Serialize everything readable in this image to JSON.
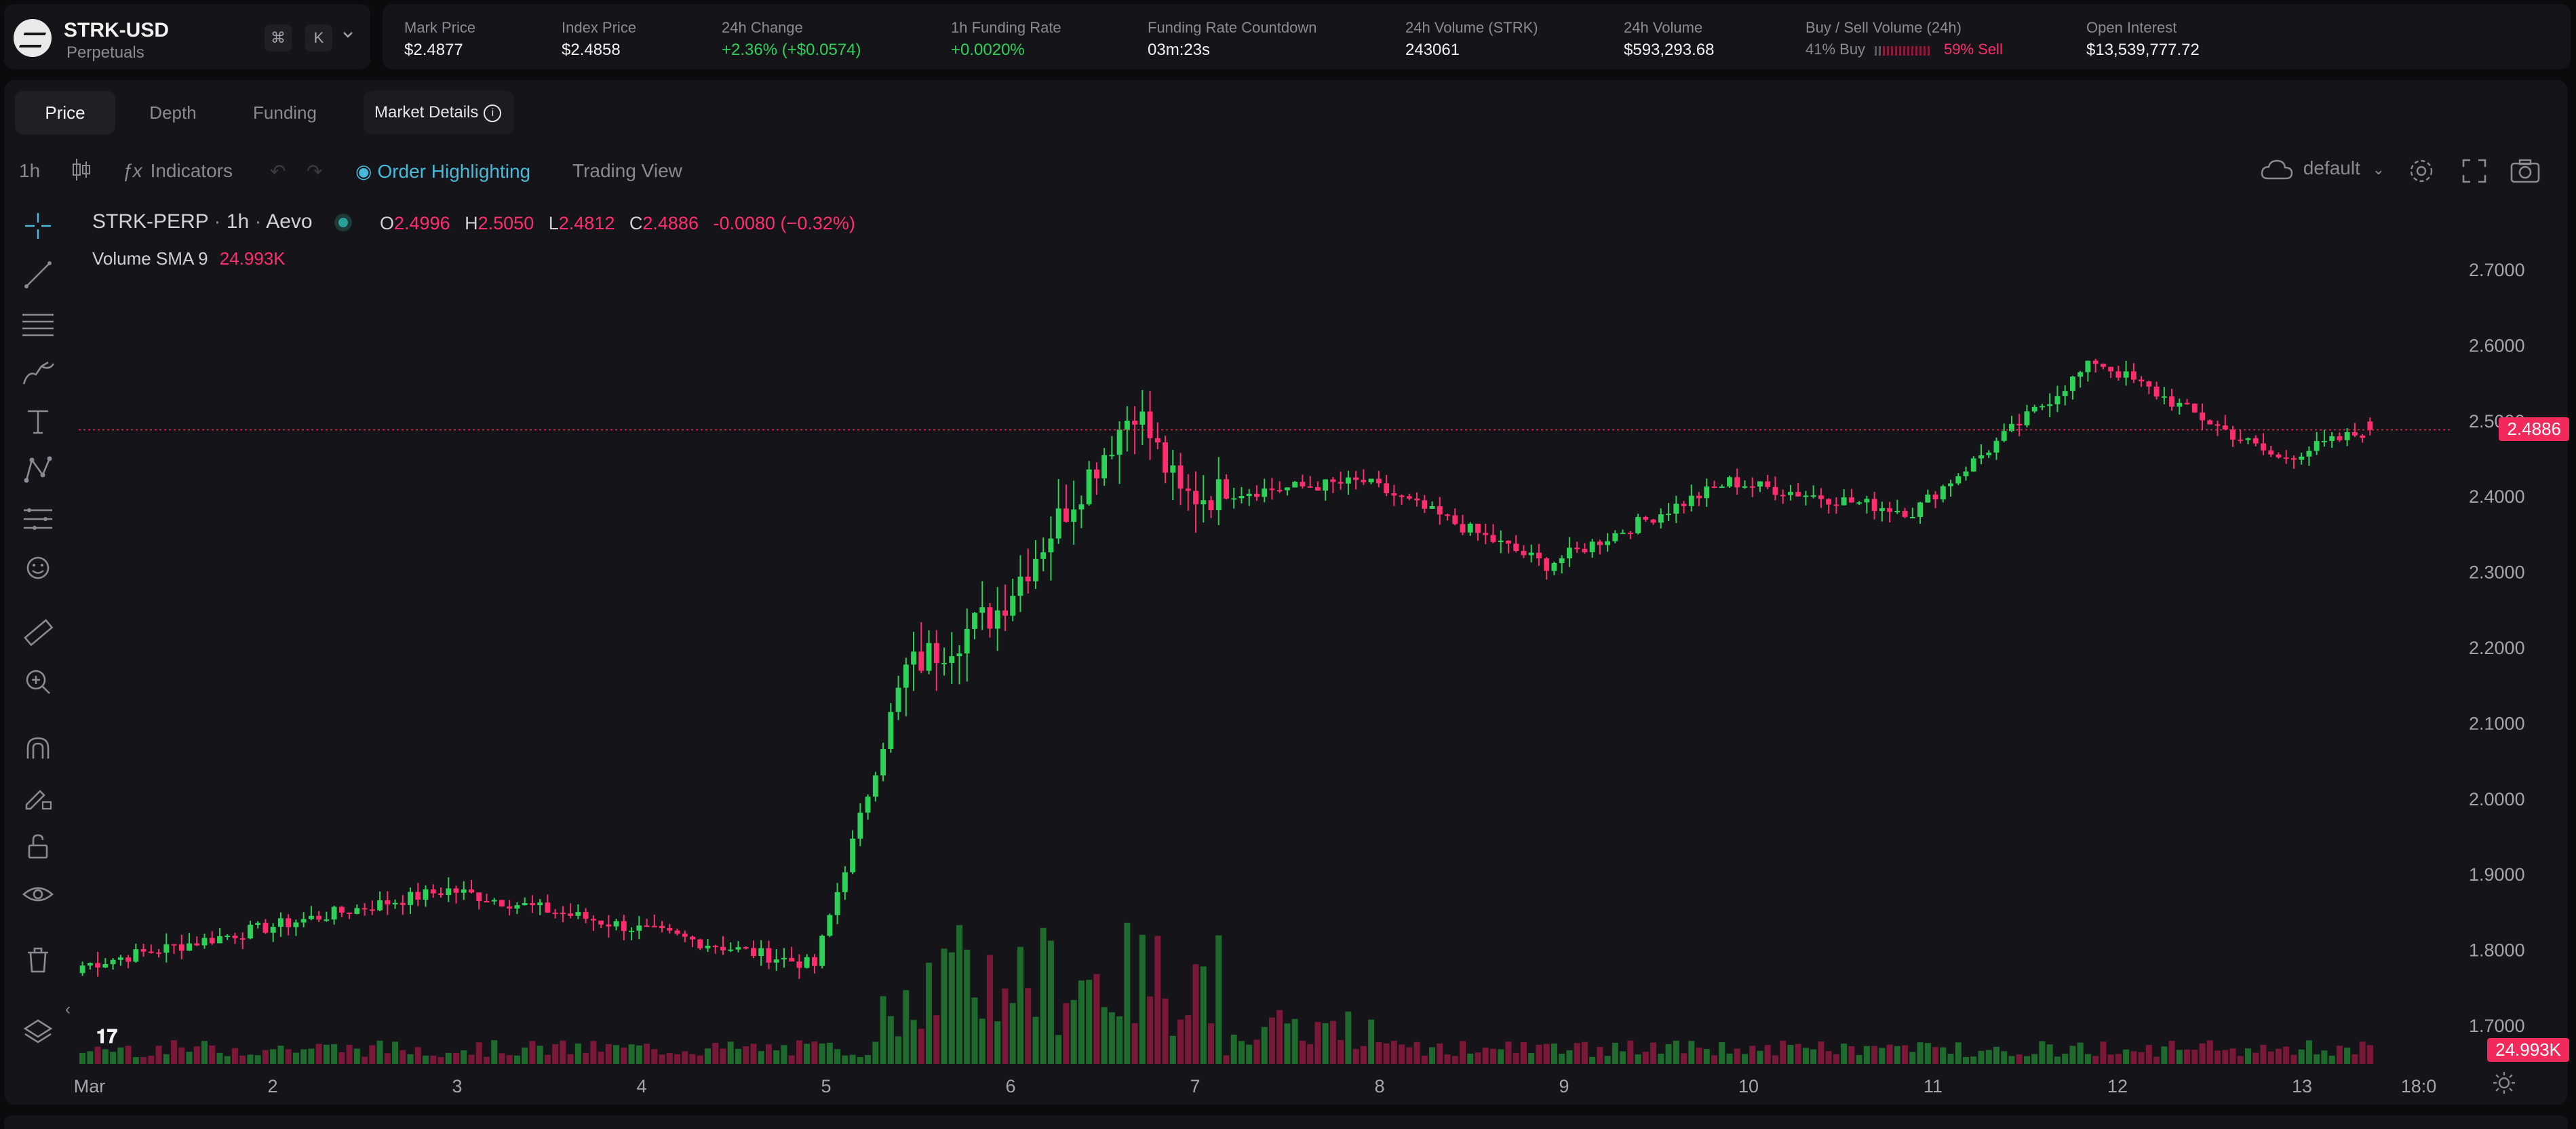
{
  "market": {
    "symbol": "STRK-USD",
    "type": "Perpetuals",
    "shortcut_cmd": "⌘",
    "shortcut_key": "K",
    "chevron": "chevron-down-icon"
  },
  "stats": [
    {
      "label": "Mark Price",
      "value": "$2.4877",
      "color": ""
    },
    {
      "label": "Index Price",
      "value": "$2.4858",
      "color": ""
    },
    {
      "label": "24h Change",
      "value": "+2.36% (+$0.0574)",
      "color": "green"
    },
    {
      "label": "1h Funding Rate",
      "value": "+0.0020%",
      "color": "green"
    },
    {
      "label": "Funding Rate Countdown",
      "value": "03m:23s",
      "color": ""
    },
    {
      "label": "24h Volume (STRK)",
      "value": "243061",
      "color": ""
    },
    {
      "label": "24h Volume",
      "value": "$593,293.68",
      "color": ""
    },
    {
      "label": "Buy / Sell Volume (24h)",
      "buy": "41% Buy",
      "sell": "59% Sell"
    },
    {
      "label": "Open Interest",
      "value": "$13,539,777.72",
      "color": ""
    }
  ],
  "tabs": [
    "Price",
    "Depth",
    "Funding"
  ],
  "active_tab": "Price",
  "market_details": "Market Details",
  "toolbar": {
    "interval": "1h",
    "indicators": "Indicators",
    "order_highlighting": "Order Highlighting",
    "trading_view": "Trading View",
    "layout": "default"
  },
  "legend": {
    "symbol": "STRK-PERP",
    "interval": "1h",
    "exchange": "Aevo",
    "o_label": "O",
    "o": "2.4996",
    "h_label": "H",
    "h": "2.5050",
    "l_label": "L",
    "l": "2.4812",
    "c_label": "C",
    "c": "2.4886",
    "change": "-0.0080 (−0.32%)",
    "volume_label": "Volume SMA 9",
    "volume_value": "24.993K"
  },
  "price_axis": [
    "2.7000",
    "2.6000",
    "2.5000",
    "2.4000",
    "2.3000",
    "2.2000",
    "2.1000",
    "2.0000",
    "1.9000",
    "1.8000",
    "1.7000"
  ],
  "current_price_tag": "2.4886",
  "volume_tag": "24.993K",
  "time_axis": [
    "Mar",
    "2",
    "3",
    "4",
    "5",
    "6",
    "7",
    "8",
    "9",
    "10",
    "11",
    "12",
    "13",
    "18:0"
  ],
  "colors": {
    "up": "#2ed158",
    "down": "#ff2d6e",
    "accent": "#48b9d8",
    "bg": "#141419"
  },
  "chart_data": {
    "type": "candlestick",
    "interval": "1h",
    "ylim": [
      1.7,
      2.7
    ],
    "key_points": [
      {
        "x": "Mar 1",
        "close": 1.78
      },
      {
        "x": "Mar 3",
        "close": 1.88
      },
      {
        "x": "Mar 4",
        "close": 1.83
      },
      {
        "x": "Mar 5",
        "close": 1.78
      },
      {
        "x": "Mar 5 12:00",
        "close": 2.17
      },
      {
        "x": "Mar 6",
        "close": 2.25
      },
      {
        "x": "Mar 6 18:00",
        "close": 2.52
      },
      {
        "x": "Mar 7",
        "close": 2.4
      },
      {
        "x": "Mar 8",
        "close": 2.42
      },
      {
        "x": "Mar 9",
        "close": 2.31
      },
      {
        "x": "Mar 10",
        "close": 2.42
      },
      {
        "x": "Mar 11",
        "close": 2.38
      },
      {
        "x": "Mar 12",
        "close": 2.58
      },
      {
        "x": "Mar 13",
        "close": 2.45
      },
      {
        "x": "Mar 13 12:00",
        "close": 2.4886
      }
    ],
    "last": {
      "open": 2.4996,
      "high": 2.505,
      "low": 2.4812,
      "close": 2.4886
    }
  }
}
